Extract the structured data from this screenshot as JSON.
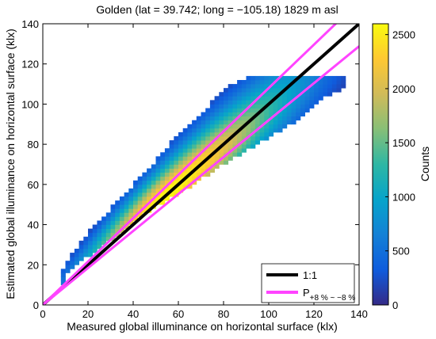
{
  "chart_data": {
    "type": "heatmap",
    "title": "Golden (lat = 39.742; long = −105.18) 1829 m asl",
    "xlabel": "Measured global illuminance on horizontal surface (klx)",
    "ylabel": "Estimated global illuminance on horizontal surface (klx)",
    "xlim": [
      0,
      140
    ],
    "ylim": [
      0,
      140
    ],
    "xticks": [
      "0",
      "20",
      "40",
      "60",
      "80",
      "100",
      "120",
      "140"
    ],
    "yticks": [
      "0",
      "20",
      "40",
      "60",
      "80",
      "100",
      "120",
      "140"
    ],
    "grid": false,
    "colorbar": {
      "label": "Counts",
      "range": [
        0,
        2600
      ],
      "ticks": [
        "0",
        "500",
        "1000",
        "1500",
        "2000",
        "2500"
      ],
      "tick_values": [
        0,
        500,
        1000,
        1500,
        2000,
        2500
      ],
      "colormap": [
        "#352a87",
        "#0f5cdd",
        "#1481d6",
        "#06a4ca",
        "#2eb7a4",
        "#87bf77",
        "#d1bb59",
        "#fec832",
        "#f9fb0e"
      ]
    },
    "density_envelope": {
      "description_values": "approximate extent of non-zero bins in data units (x, y)",
      "outline": [
        [
          9,
          10
        ],
        [
          10,
          14
        ],
        [
          15,
          20
        ],
        [
          30,
          32
        ],
        [
          45,
          45
        ],
        [
          60,
          55
        ],
        [
          80,
          70
        ],
        [
          95,
          80
        ],
        [
          110,
          90
        ],
        [
          125,
          103
        ],
        [
          132,
          107
        ],
        [
          135,
          112
        ],
        [
          134,
          114
        ],
        [
          100,
          114
        ],
        [
          90,
          113
        ],
        [
          80,
          108
        ],
        [
          70,
          95
        ],
        [
          60,
          85
        ],
        [
          50,
          72
        ],
        [
          40,
          60
        ],
        [
          30,
          48
        ],
        [
          20,
          36
        ],
        [
          12,
          24
        ],
        [
          9,
          18
        ]
      ],
      "peak": [
        55,
        55
      ],
      "peak_count": 2600
    },
    "lines": [
      {
        "name": "1:1",
        "color": "#000000",
        "points": [
          [
            0,
            0
          ],
          [
            140,
            140
          ]
        ]
      },
      {
        "name": "P",
        "name_subscript": "+8 % ~ −8 %",
        "color": "#ff44ff",
        "points": [
          [
            0,
            0
          ],
          [
            140,
            151.2
          ]
        ]
      },
      {
        "name": "",
        "color": "#ff44ff",
        "points": [
          [
            0,
            0
          ],
          [
            140,
            128.8
          ]
        ]
      }
    ],
    "legend": {
      "position": "bottom-right",
      "entries": [
        {
          "label": "1:1",
          "color": "#000000"
        },
        {
          "label": "P",
          "subscript": "+8 % ~ −8 %",
          "color": "#ff44ff"
        }
      ]
    }
  }
}
